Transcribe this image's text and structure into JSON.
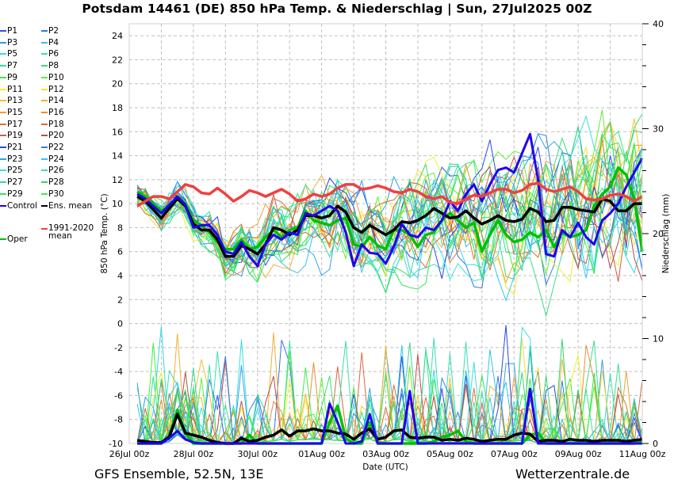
{
  "chart_data": {
    "type": "line",
    "title": "Potsdam 14461 (DE)  850 hPa Temp. & Niederschlag | Sun, 27Jul2025 00Z",
    "xlabel": "Date (UTC)",
    "ylabel": "850 hPa Temp. (°C)",
    "y2label": "Niederschlag (mm)",
    "ylim": [
      -10,
      25
    ],
    "y2lim": [
      0,
      40
    ],
    "yticks": [
      "24",
      "22",
      "20",
      "18",
      "16",
      "14",
      "12",
      "10",
      "8",
      "6",
      "4",
      "2",
      "0",
      "-2",
      "-4",
      "-6",
      "-8",
      "-10"
    ],
    "y2ticks": [
      "40",
      "30",
      "20",
      "10",
      "0"
    ],
    "xticks": [
      "26Jul 00z",
      "28Jul 00z",
      "30Jul 00z",
      "01Aug 00z",
      "03Aug 00z",
      "05Aug 00z",
      "07Aug 00z",
      "09Aug 00z",
      "11Aug 00z"
    ],
    "xrange_days": [
      0,
      16
    ],
    "step_hours": 6,
    "first_step_hours": 6,
    "grid": true,
    "legend_placement": "left-outside",
    "footer_left": "GFS Ensemble, 52.5N, 13E",
    "footer_right": "Wetterzentrale.de",
    "legend": [
      {
        "label": "P1",
        "color": "#3050e8"
      },
      {
        "label": "P2",
        "color": "#2f7ae0"
      },
      {
        "label": "P3",
        "color": "#2f9de8"
      },
      {
        "label": "P4",
        "color": "#33c3ec"
      },
      {
        "label": "P5",
        "color": "#35d8e4"
      },
      {
        "label": "P6",
        "color": "#35e0b4"
      },
      {
        "label": "P7",
        "color": "#35e08e"
      },
      {
        "label": "P8",
        "color": "#33e070"
      },
      {
        "label": "P9",
        "color": "#3ee84a"
      },
      {
        "label": "P10",
        "color": "#5cf030"
      },
      {
        "label": "P11",
        "color": "#f0f030"
      },
      {
        "label": "P12",
        "color": "#f5e030"
      },
      {
        "label": "P13",
        "color": "#f5c030"
      },
      {
        "label": "P14",
        "color": "#f0b030"
      },
      {
        "label": "P15",
        "color": "#f0a030"
      },
      {
        "label": "P16",
        "color": "#e89030"
      },
      {
        "label": "P17",
        "color": "#e07030"
      },
      {
        "label": "P18",
        "color": "#d86a40"
      },
      {
        "label": "P19",
        "color": "#d05a48"
      },
      {
        "label": "P20",
        "color": "#c04848"
      },
      {
        "label": "P21",
        "color": "#2848e0"
      },
      {
        "label": "P22",
        "color": "#2f80e8"
      },
      {
        "label": "P23",
        "color": "#30a0e8"
      },
      {
        "label": "P24",
        "color": "#30c8f0"
      },
      {
        "label": "P25",
        "color": "#38e0e0"
      },
      {
        "label": "P26",
        "color": "#38e0a8"
      },
      {
        "label": "P27",
        "color": "#38d890"
      },
      {
        "label": "P28",
        "color": "#30d870"
      },
      {
        "label": "P29",
        "color": "#30e850"
      },
      {
        "label": "P30",
        "color": "#40f040"
      },
      {
        "label": "Control",
        "color": "#2000f0"
      },
      {
        "label": "Ens. mean",
        "color": "#000000"
      },
      {
        "label": "Oper",
        "color": "#00c000"
      },
      {
        "label": "1991-2020 mean",
        "color": "#f04040"
      }
    ],
    "series_temp": [
      {
        "name": "Control",
        "values": [
          10.8,
          10.4,
          9.8,
          9.2,
          9.9,
          10.6,
          9.9,
          8.0,
          8.2,
          8.2,
          7.4,
          6.0,
          5.8,
          6.8,
          5.6,
          4.8,
          6.6,
          7.4,
          7.0,
          7.6,
          7.4,
          9.2,
          9.0,
          9.4,
          9.8,
          9.4,
          7.6,
          4.8,
          6.6,
          5.9,
          5.8,
          5.0,
          6.4,
          8.3,
          7.4,
          7.2,
          8.0,
          7.8,
          8.6,
          10.2,
          9.4,
          10.8,
          11.6,
          10.2,
          11.6,
          12.8,
          13.0,
          12.6,
          14.2,
          15.8,
          12.0,
          5.8,
          5.6,
          7.8,
          7.2,
          8.4,
          7.2,
          6.6,
          8.6,
          9.2,
          10.0,
          11.4,
          12.6,
          13.8
        ]
      },
      {
        "name": "Ens. mean",
        "values": [
          10.6,
          10.2,
          9.5,
          8.8,
          9.6,
          10.4,
          9.8,
          8.3,
          7.8,
          7.8,
          7.0,
          5.6,
          5.6,
          6.5,
          6.2,
          5.8,
          6.6,
          8.0,
          7.8,
          7.4,
          7.8,
          9.0,
          9.0,
          8.8,
          9.0,
          9.8,
          9.3,
          8.0,
          7.6,
          8.2,
          7.8,
          7.4,
          7.8,
          8.5,
          8.4,
          8.6,
          9.0,
          9.6,
          9.2,
          8.8,
          8.9,
          9.4,
          8.8,
          8.3,
          8.6,
          9.0,
          8.6,
          8.5,
          8.7,
          9.6,
          9.3,
          8.5,
          8.6,
          9.7,
          9.7,
          9.5,
          9.4,
          9.3,
          10.4,
          10.2,
          9.4,
          9.4,
          10.0,
          10.0
        ]
      },
      {
        "name": "Oper",
        "values": [
          11.0,
          10.6,
          10.0,
          9.4,
          9.8,
          10.6,
          10.0,
          8.6,
          8.2,
          7.6,
          6.8,
          6.2,
          6.2,
          7.0,
          6.2,
          6.4,
          7.2,
          7.8,
          7.2,
          7.8,
          8.0,
          9.4,
          8.6,
          8.4,
          8.2,
          8.6,
          8.8,
          6.6,
          6.4,
          7.2,
          6.5,
          6.2,
          7.8,
          7.8,
          7.4,
          6.4,
          7.4,
          7.6,
          8.6,
          9.2,
          8.6,
          8.0,
          8.4,
          6.0,
          7.4,
          8.6,
          7.4,
          6.8,
          7.0,
          7.6,
          7.2,
          7.8,
          6.4,
          7.6,
          7.2,
          7.4,
          7.8,
          9.8,
          10.8,
          11.4,
          13.0,
          12.4,
          10.4,
          6.0
        ]
      },
      {
        "name": "1991-2020 mean",
        "values": [
          9.8,
          10.2,
          10.6,
          10.6,
          10.4,
          11.0,
          11.6,
          11.4,
          10.9,
          10.8,
          11.3,
          10.8,
          10.2,
          10.6,
          11.1,
          10.9,
          10.6,
          10.9,
          11.2,
          10.8,
          10.2,
          10.4,
          10.8,
          10.6,
          10.8,
          11.3,
          11.6,
          11.6,
          11.2,
          11.3,
          11.5,
          11.3,
          11.0,
          10.9,
          11.2,
          11.0,
          10.6,
          10.4,
          10.6,
          10.1,
          10.0,
          10.4,
          10.7,
          10.6,
          10.9,
          11.2,
          11.2,
          10.9,
          11.1,
          11.6,
          11.7,
          11.2,
          11.0,
          11.2,
          11.4,
          11.0,
          10.4,
          10.3,
          10.4,
          10.7,
          10.8,
          10.6,
          10.2,
          10.6
        ]
      }
    ],
    "series_precip": [
      {
        "name": "Control",
        "values": [
          0,
          0,
          0,
          0,
          0.5,
          1.2,
          0.4,
          0.1,
          0,
          0,
          0,
          0,
          0,
          0,
          0,
          0,
          0,
          0,
          0,
          0,
          0,
          0,
          0,
          0,
          3.8,
          2.0,
          0,
          0,
          0.2,
          2.8,
          0,
          0,
          0,
          0,
          5.0,
          0,
          0,
          0,
          0,
          0,
          0,
          0,
          0,
          0,
          0,
          0,
          0,
          0,
          0,
          5.2,
          0,
          0,
          0,
          0,
          0,
          0,
          0,
          0,
          0,
          0,
          0,
          0,
          0,
          0
        ]
      },
      {
        "name": "Ens. mean",
        "values": [
          0.3,
          0.2,
          0.1,
          0.1,
          0.6,
          2.8,
          1.0,
          0.8,
          0.6,
          0.3,
          0.1,
          0,
          0,
          0.5,
          0.2,
          0.3,
          0.6,
          0.8,
          1.3,
          0.7,
          1.2,
          1.2,
          1.4,
          1.2,
          1.2,
          1.0,
          0.9,
          0.4,
          1.0,
          1.4,
          0.4,
          0.6,
          1.2,
          1.3,
          0.6,
          0.5,
          0.6,
          0.6,
          0.3,
          0.4,
          0.3,
          0.5,
          0.4,
          0.2,
          0.3,
          0.4,
          0.4,
          0.8,
          1.0,
          0.9,
          0.2,
          0.3,
          0.3,
          0.2,
          0.4,
          0.3,
          0.3,
          0.2,
          0.3,
          0.3,
          0.3,
          0.2,
          0.3,
          0.4
        ]
      },
      {
        "name": "Oper",
        "values": [
          0,
          0,
          0,
          0,
          0.8,
          3.2,
          1.0,
          0,
          0,
          0,
          0,
          0,
          0,
          0,
          0.8,
          0,
          0,
          0,
          0,
          0,
          0,
          0,
          0,
          0,
          2.0,
          3.6,
          0.5,
          0,
          0,
          2.0,
          0,
          0,
          0,
          0,
          0,
          0,
          0,
          0.2,
          0.6,
          0.8,
          1.2,
          0.2,
          0,
          0,
          0,
          0,
          0,
          0,
          0,
          0.8,
          1.0,
          0,
          0,
          0,
          0,
          0,
          0,
          0,
          0,
          0,
          0,
          0,
          0,
          0.3
        ]
      },
      {
        "name": "1991-2020 mean",
        "values": []
      }
    ]
  }
}
